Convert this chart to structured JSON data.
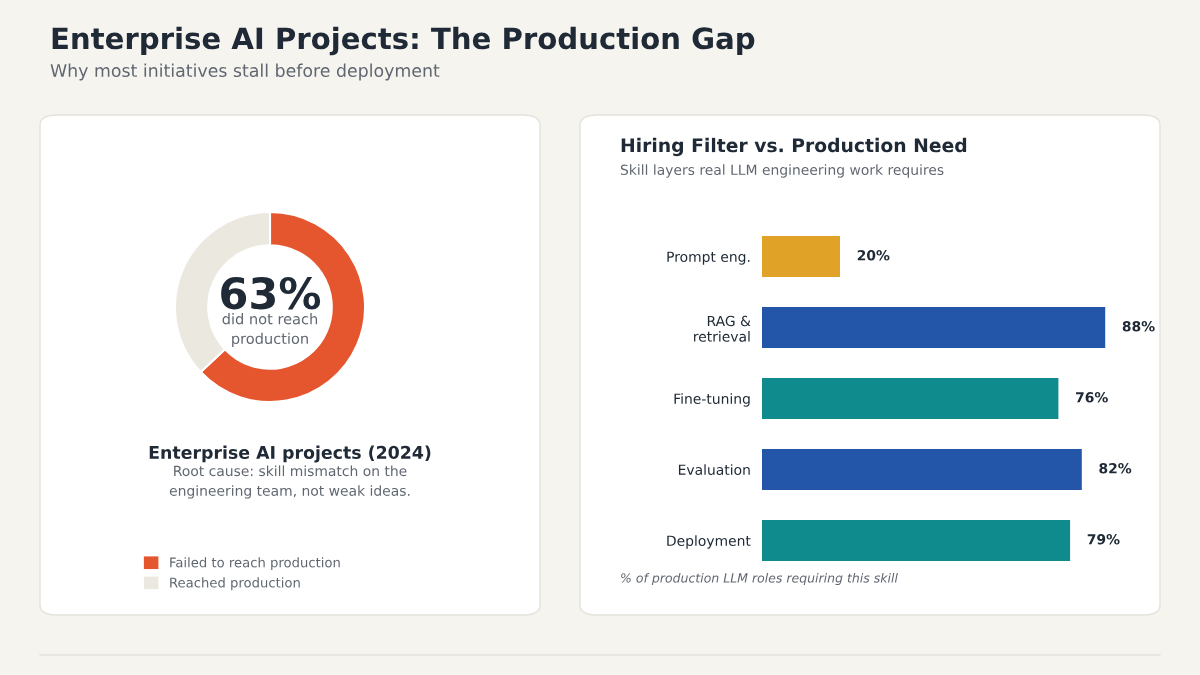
{
  "chart_data": [
    {
      "type": "other",
      "title": "Enterprise AI Projects: The Production Gap",
      "subtitle": "Why most initiatives stall before deployment"
    },
    {
      "type": "donut",
      "title": "Enterprise AI projects (2024)",
      "categories": [
        "Failed to reach production",
        "Reached production"
      ],
      "values": [
        63,
        37
      ],
      "colors": [
        "#e5562e",
        "#ebe8df"
      ],
      "legend": "bottom left",
      "annotations": [
        "63%",
        "did not reach\nproduction",
        "Root cause: skill mismatch on the\nengineering team, not weak ideas."
      ]
    },
    {
      "type": "bar",
      "orientation": "horizontal",
      "title": "Hiring Filter vs. Production Need",
      "subtitle": "Skill layers real LLM engineering work requires",
      "categories": [
        "Prompt eng.",
        "RAG &\nretrieval",
        "Fine-tuning",
        "Evaluation",
        "Deployment"
      ],
      "values": [
        20,
        88,
        76,
        82,
        79
      ],
      "colors": [
        "#e0a328",
        "#2355a8",
        "#0f8b8d",
        "#2355a8",
        "#0f8b8d"
      ],
      "value_labels": [
        "20%",
        "88%",
        "76%",
        "82%",
        "79%"
      ],
      "tick_labels": "y",
      "grid": false,
      "annotations": [
        "% of production LLM roles requiring this skill"
      ]
    }
  ]
}
